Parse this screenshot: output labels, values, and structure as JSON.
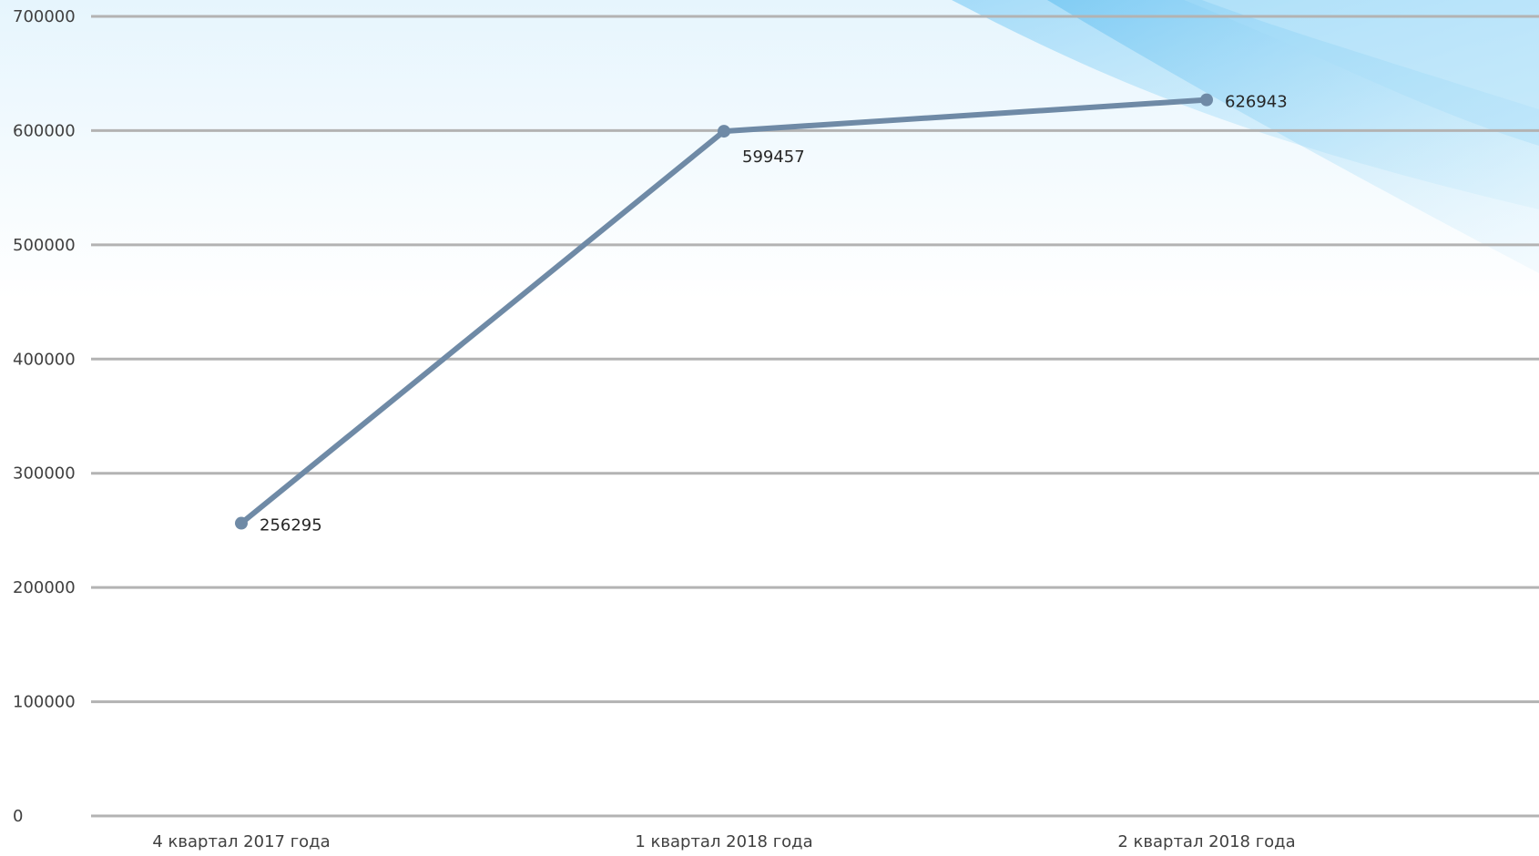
{
  "chart_data": {
    "type": "line",
    "title": "",
    "xlabel": "",
    "ylabel": "",
    "categories": [
      "4 квартал 2017 года",
      "1 квартал 2018 года",
      "2 квартал 2018 года"
    ],
    "series": [
      {
        "values": [
          256295,
          599457,
          626943
        ],
        "data_labels": [
          "256295",
          "599457",
          "626943"
        ],
        "color": "#6f8aa6"
      }
    ],
    "ylim": [
      0,
      700000
    ],
    "yticks": [
      0,
      100000,
      200000,
      300000,
      400000,
      500000,
      600000,
      700000
    ],
    "ytick_labels": [
      "0",
      "100000",
      "200000",
      "300000",
      "400000",
      "500000",
      "600000",
      "700000"
    ],
    "grid": true,
    "legend": "none",
    "gridline_color": "#b3b3b3",
    "background_accent_color": "#7fcdf5"
  }
}
